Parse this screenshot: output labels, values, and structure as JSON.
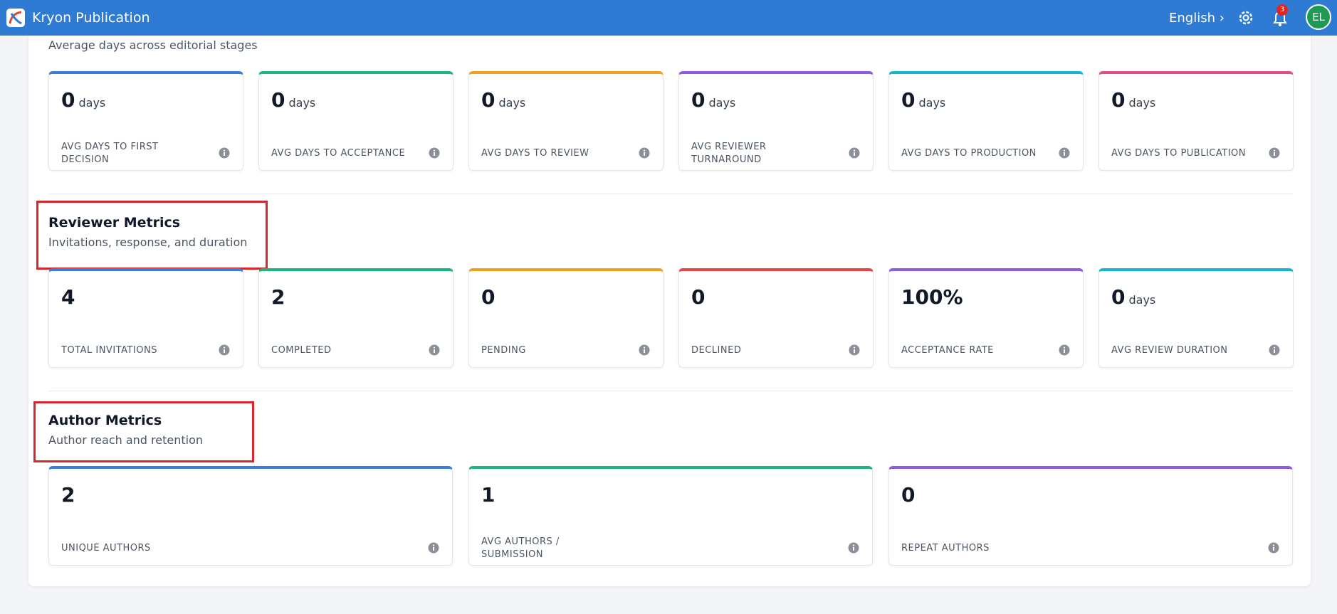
{
  "header": {
    "title": "Kryon Publication",
    "language": "English",
    "notifications": "3",
    "avatar": "EL"
  },
  "sections": [
    {
      "subtitle": "Average days across editorial stages",
      "cards": [
        {
          "value": 0,
          "unit": "days",
          "label": "AVG DAYS TO FIRST DECISION",
          "color": "#3b7dd8"
        },
        {
          "value": 0,
          "unit": "days",
          "label": "AVG DAYS TO ACCEPTANCE",
          "color": "#1fb37e"
        },
        {
          "value": 0,
          "unit": "days",
          "label": "AVG DAYS TO REVIEW",
          "color": "#f0a020"
        },
        {
          "value": 0,
          "unit": "days",
          "label": "AVG REVIEWER TURNAROUND",
          "color": "#8e5ce0"
        },
        {
          "value": 0,
          "unit": "days",
          "label": "AVG DAYS TO PRODUCTION",
          "color": "#18b4d0"
        },
        {
          "value": 0,
          "unit": "days",
          "label": "AVG DAYS TO PUBLICATION",
          "color": "#e04e8a"
        }
      ]
    },
    {
      "title": "Reviewer Metrics",
      "subtitle": "Invitations, response, and duration",
      "cards": [
        {
          "value": 4,
          "label": "TOTAL INVITATIONS",
          "color": "#3b7dd8"
        },
        {
          "value": 2,
          "label": "COMPLETED",
          "color": "#1fb37e"
        },
        {
          "value": 0,
          "label": "PENDING",
          "color": "#f0a020"
        },
        {
          "value": 0,
          "label": "DECLINED",
          "color": "#e04848"
        },
        {
          "value": "100%",
          "label": "ACCEPTANCE RATE",
          "color": "#8e5ce0"
        },
        {
          "value": 0,
          "unit": "days",
          "label": "AVG REVIEW DURATION",
          "color": "#18b4d0"
        }
      ]
    },
    {
      "title": "Author Metrics",
      "subtitle": "Author reach and retention",
      "cards": [
        {
          "value": 2,
          "label": "UNIQUE AUTHORS",
          "color": "#3b7dd8"
        },
        {
          "value": 1,
          "label": "AVG AUTHORS / SUBMISSION",
          "color": "#1fb37e"
        },
        {
          "value": 0,
          "label": "REPEAT AUTHORS",
          "color": "#8e5ce0"
        }
      ]
    }
  ]
}
